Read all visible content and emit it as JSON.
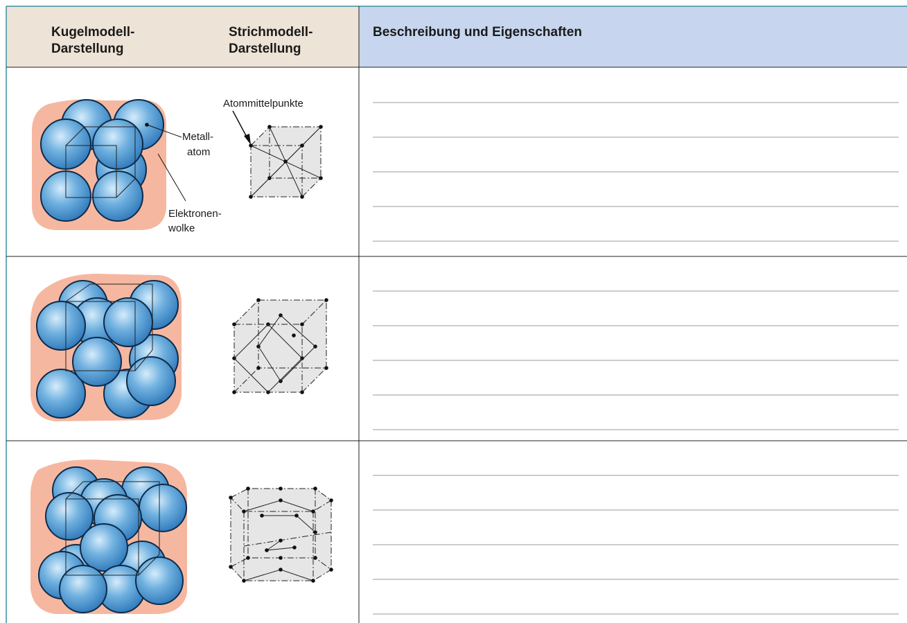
{
  "header": {
    "columns": [
      [
        "Kugelmodell-",
        "Darstellung"
      ],
      [
        "Strichmodell-",
        "Darstellung"
      ],
      [
        "Beschreibung und Eigenschaften"
      ]
    ]
  },
  "labels": {
    "center": "Atommittelpunkte",
    "atom": [
      "Metall-",
      "atom"
    ],
    "cloud": [
      "Elektronen-",
      "wolke"
    ]
  }
}
